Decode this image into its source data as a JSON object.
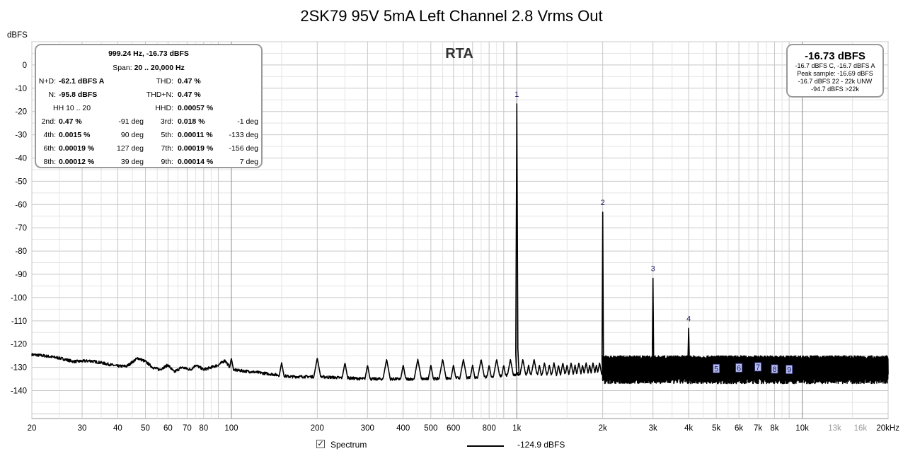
{
  "chart_data": {
    "type": "line",
    "title": "2SK79 95V   5mA Left Channel 2.8 Vrms Out",
    "subtitle": "RTA",
    "ylabel": "dBFS",
    "xscale": "log",
    "xlim": [
      20,
      20000
    ],
    "ylim": [
      -152,
      10
    ],
    "grid": true,
    "y_ticks": [
      0,
      -10,
      -20,
      -30,
      -40,
      -50,
      -60,
      -70,
      -80,
      -90,
      -100,
      -110,
      -120,
      -130,
      -140
    ],
    "x_ticks": [
      {
        "value": 20,
        "label": "20",
        "major": true
      },
      {
        "value": 30,
        "label": "30",
        "major": true
      },
      {
        "value": 40,
        "label": "40",
        "major": true
      },
      {
        "value": 50,
        "label": "50",
        "major": true
      },
      {
        "value": 60,
        "label": "60",
        "major": true
      },
      {
        "value": 70,
        "label": "70",
        "major": true
      },
      {
        "value": 80,
        "label": "80",
        "major": true
      },
      {
        "value": 100,
        "label": "100",
        "major": true
      },
      {
        "value": 200,
        "label": "200",
        "major": true
      },
      {
        "value": 300,
        "label": "300",
        "major": true
      },
      {
        "value": 400,
        "label": "400",
        "major": true
      },
      {
        "value": 500,
        "label": "500",
        "major": true
      },
      {
        "value": 600,
        "label": "600",
        "major": true
      },
      {
        "value": 800,
        "label": "800",
        "major": true
      },
      {
        "value": 1000,
        "label": "1k",
        "major": true
      },
      {
        "value": 2000,
        "label": "2k",
        "major": true
      },
      {
        "value": 3000,
        "label": "3k",
        "major": true
      },
      {
        "value": 4000,
        "label": "4k",
        "major": true
      },
      {
        "value": 5000,
        "label": "5k",
        "major": true
      },
      {
        "value": 6000,
        "label": "6k",
        "major": true
      },
      {
        "value": 7000,
        "label": "7k",
        "major": true
      },
      {
        "value": 8000,
        "label": "8k",
        "major": true
      },
      {
        "value": 10000,
        "label": "10k",
        "major": true
      },
      {
        "value": 13000,
        "label": "13k",
        "major": false
      },
      {
        "value": 16000,
        "label": "16k",
        "major": false
      },
      {
        "value": 20000,
        "label": "20kHz",
        "major": true
      }
    ],
    "harmonics": [
      {
        "label": "1",
        "freq": 1000,
        "level": -16.73
      },
      {
        "label": "2",
        "freq": 2000,
        "level": -63.3
      },
      {
        "label": "3",
        "freq": 3000,
        "level": -91.7
      },
      {
        "label": "4",
        "freq": 4000,
        "level": -113.2
      },
      {
        "label": "5",
        "freq": 5000,
        "level": -130.5
      },
      {
        "label": "6",
        "freq": 6000,
        "level": -130.2
      },
      {
        "label": "7",
        "freq": 7000,
        "level": -129.8
      },
      {
        "label": "8",
        "freq": 8000,
        "level": -130.7
      },
      {
        "label": "9",
        "freq": 9000,
        "level": -130.9
      }
    ],
    "noise_floor": [
      [
        20,
        -124.5
      ],
      [
        22,
        -125
      ],
      [
        25,
        -126
      ],
      [
        28,
        -127.5
      ],
      [
        32,
        -127.2
      ],
      [
        35,
        -128
      ],
      [
        40,
        -129.5
      ],
      [
        43,
        -129.5
      ],
      [
        47,
        -126
      ],
      [
        50,
        -127.5
      ],
      [
        53,
        -130
      ],
      [
        56,
        -131
      ],
      [
        60,
        -129
      ],
      [
        63,
        -132
      ],
      [
        67,
        -130
      ],
      [
        72,
        -131
      ],
      [
        75,
        -129
      ],
      [
        80,
        -131
      ],
      [
        85,
        -130
      ],
      [
        90,
        -129
      ],
      [
        95,
        -127
      ],
      [
        100,
        -131
      ],
      [
        120,
        -132
      ],
      [
        140,
        -133
      ],
      [
        160,
        -134
      ],
      [
        200,
        -134
      ],
      [
        300,
        -135
      ],
      [
        500,
        -135
      ],
      [
        800,
        -134
      ],
      [
        1000,
        -133
      ],
      [
        2000,
        -133
      ],
      [
        20000,
        -133
      ]
    ],
    "mains_spur_start": 100,
    "mains_spur_step": 50,
    "hf_noise_start": 2000,
    "hf_noise_range": [
      -137,
      -126.5
    ]
  },
  "info_box": {
    "header": "999.24 Hz, -16.73 dBFS",
    "span_label": "Span:",
    "span_value": "20 .. 20,000 Hz",
    "nd_label": "N+D:",
    "nd_value": "-62.1 dBFS A",
    "n_label": "N:",
    "n_value": "-95.8 dBFS",
    "thd_label": "THD:",
    "thd_value": "0.47 %",
    "thdn_label": "THD+N:",
    "thdn_value": "0.47 %",
    "hh_label": "HH 10 .. 20",
    "hhd_label": "HHD:",
    "hhd_value": "0.00057 %",
    "rows": [
      {
        "l1": "2nd:",
        "v1": "0.47 %",
        "d1": "-91 deg",
        "l2": "3rd:",
        "v2": "0.018 %",
        "d2": "-1 deg"
      },
      {
        "l1": "4th:",
        "v1": "0.0015 %",
        "d1": "90 deg",
        "l2": "5th:",
        "v2": "0.00011 %",
        "d2": "-133 deg"
      },
      {
        "l1": "6th:",
        "v1": "0.00019 %",
        "d1": "127 deg",
        "l2": "7th:",
        "v2": "0.00019 %",
        "d2": "-156 deg"
      },
      {
        "l1": "8th:",
        "v1": "0.00012 %",
        "d1": "39 deg",
        "l2": "9th:",
        "v2": "0.00014 %",
        "d2": "7 deg"
      }
    ]
  },
  "level_box": {
    "main": "-16.73 dBFS",
    "line1": "-16.7 dBFS C, -16.7 dBFS A",
    "line2": "Peak sample: -16.69 dBFS",
    "line3": "-16.7 dBFS 22 - 22k UNW",
    "line4": "-94.7 dBFS >22k"
  },
  "legend": {
    "checkbox_mark": "✓",
    "series_label": "Spectrum",
    "value": "-124.9 dBFS"
  },
  "colors": {
    "trace": "#000000",
    "grid_major": "#c8c8c8",
    "grid_minor": "#e4e4e4",
    "marker_fill": "#b8bfee",
    "marker_border": "#3d3d9a"
  }
}
